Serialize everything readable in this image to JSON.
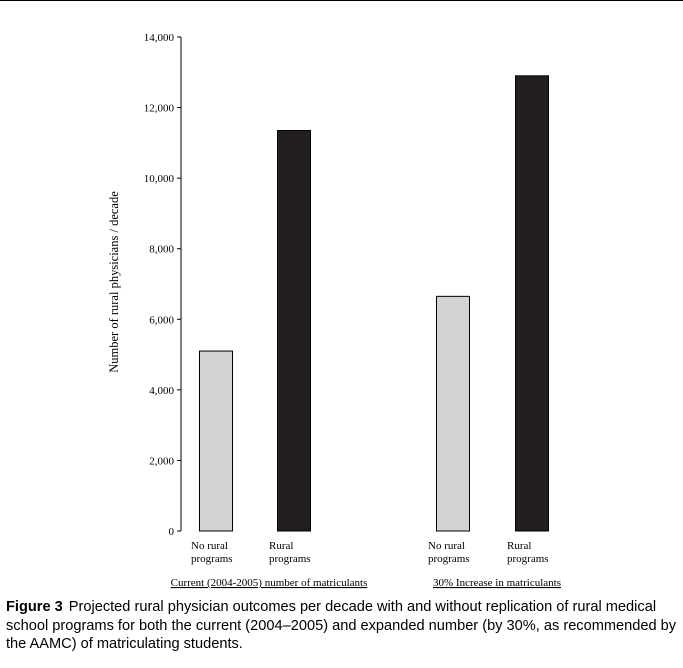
{
  "chart_data": {
    "type": "bar",
    "ylabel": "Number of rural physicians / decade",
    "ylim": [
      0,
      14000
    ],
    "yticks": [
      0,
      2000,
      4000,
      6000,
      8000,
      10000,
      12000,
      14000
    ],
    "ytick_labels": [
      "0",
      "2,000",
      "4,000",
      "6,000",
      "8,000",
      "10,000",
      "12,000",
      "14,000"
    ],
    "groups": [
      {
        "label": "Current (2004-2005) number of matriculants",
        "bars": [
          {
            "label_lines": [
              "No rural",
              "programs"
            ],
            "value": 5100,
            "color": "#d3d3d3"
          },
          {
            "label_lines": [
              "Rural",
              "programs"
            ],
            "value": 11350,
            "color": "#231f20"
          }
        ]
      },
      {
        "label": "30% Increase in matriculants",
        "bars": [
          {
            "label_lines": [
              "No rural",
              "programs"
            ],
            "value": 6650,
            "color": "#d3d3d3"
          },
          {
            "label_lines": [
              "Rural",
              "programs"
            ],
            "value": 12900,
            "color": "#231f20"
          }
        ]
      }
    ]
  },
  "caption": {
    "label": "Figure 3",
    "text": "Projected rural physician outcomes per decade with and without replication of rural medical school programs for both the current (2004–2005) and expanded number (by 30%, as recommended by the AAMC) of matriculating students."
  }
}
